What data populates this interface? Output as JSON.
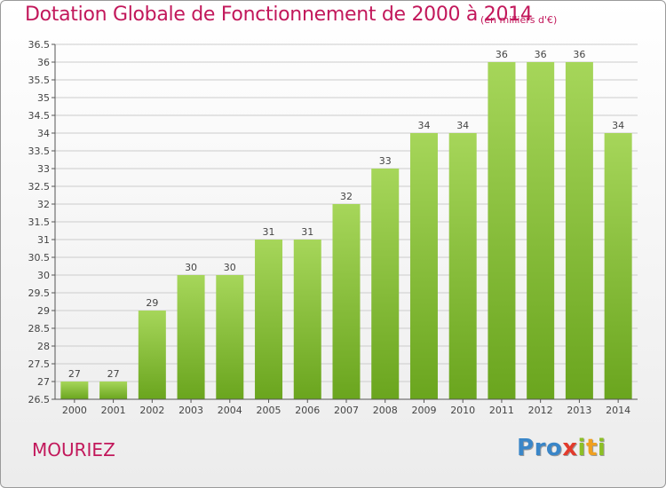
{
  "title": "Dotation Globale de Fonctionnement de 2000 à 2014",
  "subtitle": "(en milliers d'€)",
  "location": "MOURIEZ",
  "logo": {
    "text": "Proxiti",
    "letters": [
      {
        "ch": "P",
        "color": "#3a86c8"
      },
      {
        "ch": "r",
        "color": "#3a86c8"
      },
      {
        "ch": "o",
        "color": "#3a86c8"
      },
      {
        "ch": "x",
        "color": "#e23b2c"
      },
      {
        "ch": "i",
        "color": "#8cbf26"
      },
      {
        "ch": "t",
        "color": "#f0a020"
      },
      {
        "ch": "i",
        "color": "#8cbf26"
      }
    ]
  },
  "colors": {
    "bar_light": "#a6d65a",
    "bar_dark": "#6aa51e",
    "title": "#c2185b",
    "grid": "#cccccc"
  },
  "chart_data": {
    "type": "bar",
    "categories": [
      "2000",
      "2001",
      "2002",
      "2003",
      "2004",
      "2005",
      "2006",
      "2007",
      "2008",
      "2009",
      "2010",
      "2011",
      "2012",
      "2013",
      "2014"
    ],
    "values": [
      27,
      27,
      29,
      30,
      30,
      31,
      31,
      32,
      33,
      34,
      34,
      36,
      36,
      36,
      34
    ],
    "ylim": [
      26.5,
      36.5
    ],
    "yticks": [
      "26.5",
      "27",
      "27.5",
      "28",
      "28.5",
      "29",
      "29.5",
      "30",
      "30.5",
      "31",
      "31.5",
      "32",
      "32.5",
      "33",
      "33.5",
      "34",
      "34.5",
      "35",
      "35.5",
      "36",
      "36.5"
    ],
    "grid": true,
    "legend": "none"
  }
}
